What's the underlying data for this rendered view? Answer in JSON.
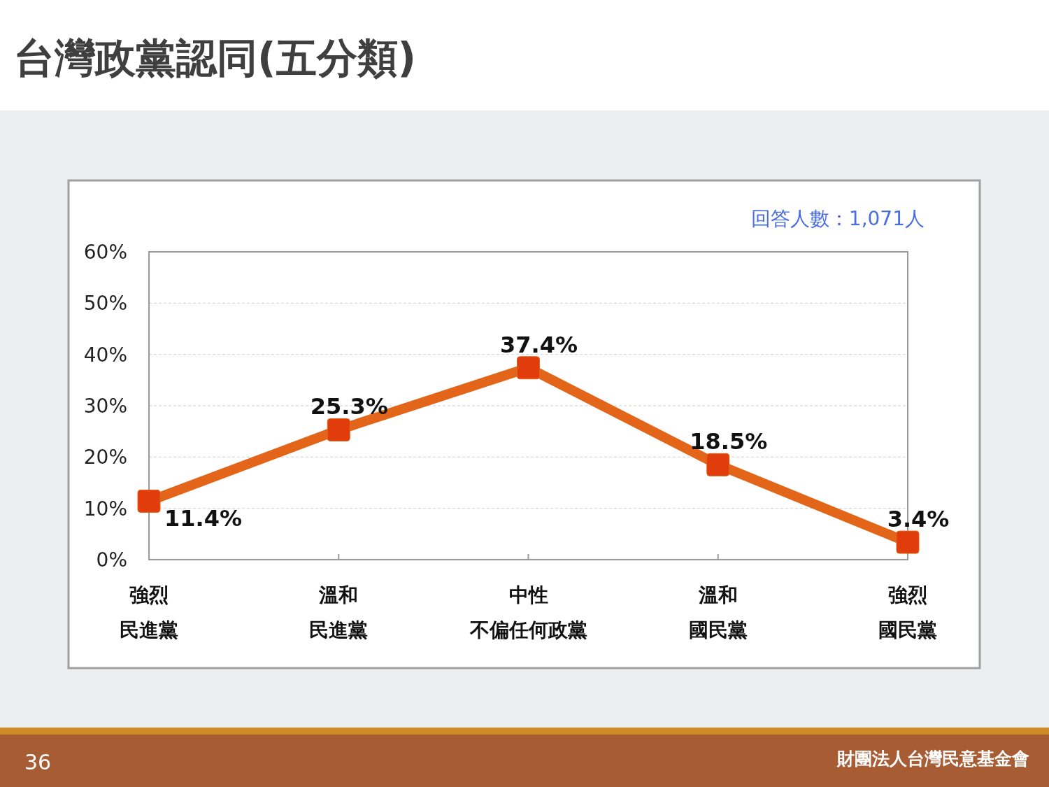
{
  "chart_data": {
    "type": "line",
    "title": "台灣政黨認同(五分類)",
    "categories": [
      "強烈民進黨",
      "溫和民進黨",
      "中性不偏任何政黨",
      "溫和國民黨",
      "強烈國民黨"
    ],
    "series": [
      {
        "color": "#e2651a",
        "values": [
          11.4,
          25.3,
          37.4,
          18.5,
          3.4
        ],
        "value_labels": [
          "11.4%",
          "25.3%",
          "37.4%",
          "18.5%",
          "3.4%"
        ]
      }
    ],
    "ylim": [
      0,
      60
    ],
    "yticks": [
      {
        "value": 0,
        "label": "0%"
      },
      {
        "value": 10,
        "label": "10%"
      },
      {
        "value": 20,
        "label": "20%"
      },
      {
        "value": 30,
        "label": "30%"
      },
      {
        "value": 40,
        "label": "40%"
      },
      {
        "value": 50,
        "label": "50%"
      },
      {
        "value": 60,
        "label": "60%"
      }
    ],
    "grid": "y",
    "marker": "square",
    "line_style": "solid",
    "annotations": [
      "回答人數：1,071人",
      "36",
      "財團法人台灣民意基金會"
    ]
  }
}
